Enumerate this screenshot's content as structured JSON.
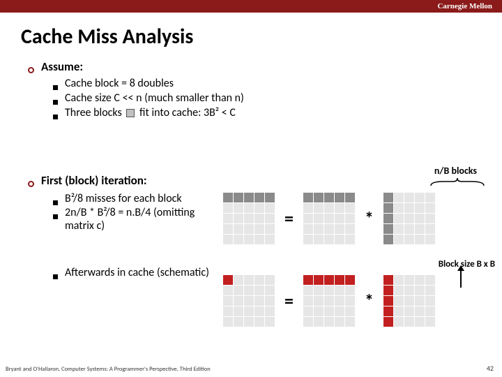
{
  "header": {
    "org": "Carnegie Mellon"
  },
  "title": "Cache Miss Analysis",
  "assume": {
    "head": "Assume:",
    "items": [
      "Cache block = 8 doubles",
      "Cache size C << n (much smaller than n)",
      "Three blocks       fit into cache: 3B² < C"
    ]
  },
  "first_iter": {
    "head": "First (block) iteration:",
    "items": [
      "B²/8 misses for each block",
      "2n/B * B²/8 = n.B/4 (omitting matrix c)"
    ],
    "after": "Afterwards in cache (schematic)"
  },
  "labels": {
    "nb": "n/B blocks",
    "block_size": "Block size B x B"
  },
  "diagram": {
    "colors": {
      "light": "#e6e6e6",
      "dark": "#8a8a8a",
      "red": "#c22020"
    },
    "grid_size": 5,
    "row1": {
      "left": {
        "dark_row": 0
      },
      "mid": {
        "dark_row": 0
      },
      "right": {
        "dark_col": 0
      }
    },
    "row2": {
      "left": {
        "red_cell": [
          0,
          0
        ]
      },
      "mid": {
        "red_row": 0
      },
      "right": {
        "red_col": 0
      }
    },
    "eq": "=",
    "mul": "*"
  },
  "footer": "Bryant and O'Hallaron, Computer Systems: A Programmer's Perspective, Third Edition",
  "page": "42"
}
